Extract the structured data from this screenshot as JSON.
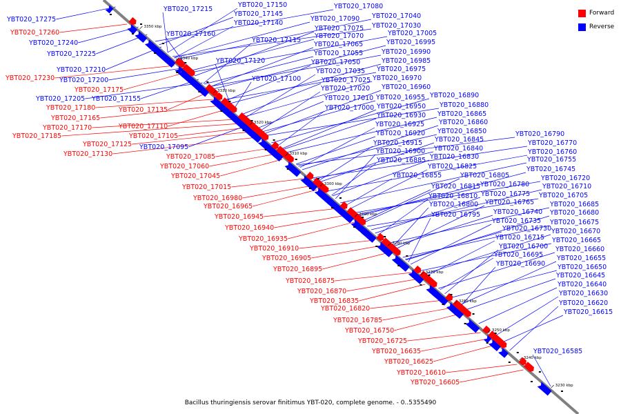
{
  "legend": {
    "forward_label": "Forward",
    "reverse_label": "Reverse",
    "forward_color": "#ff0000",
    "reverse_color": "#0000ff"
  },
  "caption": "Bacillus thuringiensis serovar finitimus YBT-020, complete genome. - 0..5355490",
  "colors": {
    "forward": "#ff0000",
    "reverse": "#0000ff",
    "axis": "#808080",
    "tick_text": "#000000"
  },
  "ticks": [
    "3350 kbp",
    "3340 kbp",
    "3330 kbp",
    "3320 kbp",
    "3310 kbp",
    "3300 kbp",
    "3290 kbp",
    "3280 kbp",
    "3270 kbp",
    "3260 kbp",
    "3250 kbp",
    "3240 kbp",
    "3230 kbp"
  ],
  "forward_genes": [
    "YBT020_17260",
    "YBT020_17230",
    "YBT020_17175",
    "YBT020_17180",
    "YBT020_17165",
    "YBT020_17135",
    "YBT020_17170",
    "YBT020_17185",
    "YBT020_17110",
    "YBT020_17105",
    "YBT020_17125",
    "YBT020_17130",
    "YBT020_17085",
    "YBT020_17060",
    "YBT020_17045",
    "YBT020_17015",
    "YBT020_16980",
    "YBT020_16965",
    "YBT020_16945",
    "YBT020_16940",
    "YBT020_16935",
    "YBT020_16910",
    "YBT020_16905",
    "YBT020_16895",
    "YBT020_16875",
    "YBT020_16870",
    "YBT020_16835",
    "YBT020_16820",
    "YBT020_16785",
    "YBT020_16750",
    "YBT020_16725",
    "YBT020_16635",
    "YBT020_16625",
    "YBT020_16610",
    "YBT020_16605"
  ],
  "reverse_genes": [
    "YBT020_17275",
    "YBT020_17240",
    "YBT020_17225",
    "YBT020_17210",
    "YBT020_17200",
    "YBT020_17205",
    "YBT020_17155",
    "YBT020_17095",
    "YBT020_17215",
    "YBT020_17150",
    "YBT020_17145",
    "YBT020_17140",
    "YBT020_17160",
    "YBT020_17115",
    "YBT020_17120",
    "YBT020_17100",
    "YBT020_17080",
    "YBT020_17090",
    "YBT020_17040",
    "YBT020_17075",
    "YBT020_17030",
    "YBT020_17070",
    "YBT020_17005",
    "YBT020_17065",
    "YBT020_16995",
    "YBT020_17055",
    "YBT020_16990",
    "YBT020_17050",
    "YBT020_16985",
    "YBT020_17035",
    "YBT020_16975",
    "YBT020_17025",
    "YBT020_16970",
    "YBT020_17020",
    "YBT020_16960",
    "YBT020_17010",
    "YBT020_16955",
    "YBT020_17000",
    "YBT020_16950",
    "YBT020_16890",
    "YBT020_16880",
    "YBT020_16930",
    "YBT020_16865",
    "YBT020_16925",
    "YBT020_16860",
    "YBT020_16920",
    "YBT020_16850",
    "YBT020_16915",
    "YBT020_16845",
    "YBT020_16900",
    "YBT020_16840",
    "YBT020_16885",
    "YBT020_16830",
    "YBT020_16825",
    "YBT020_16805",
    "YBT020_16855",
    "YBT020_16815",
    "YBT020_16810",
    "YBT020_16800",
    "YBT020_16795",
    "YBT020_16790",
    "YBT020_16770",
    "YBT020_16760",
    "YBT020_16755",
    "YBT020_16745",
    "YBT020_16780",
    "YBT020_16720",
    "YBT020_16775",
    "YBT020_16710",
    "YBT020_16765",
    "YBT020_16705",
    "YBT020_16740",
    "YBT020_16685",
    "YBT020_16735",
    "YBT020_16680",
    "YBT020_16730",
    "YBT020_16675",
    "YBT020_16715",
    "YBT020_16670",
    "YBT020_16700",
    "YBT020_16665",
    "YBT020_16695",
    "YBT020_16660",
    "YBT020_16690",
    "YBT020_16655",
    "YBT020_16650",
    "YBT020_16645",
    "YBT020_16640",
    "YBT020_16630",
    "YBT020_16620",
    "YBT020_16615",
    "YBT020_16585"
  ]
}
